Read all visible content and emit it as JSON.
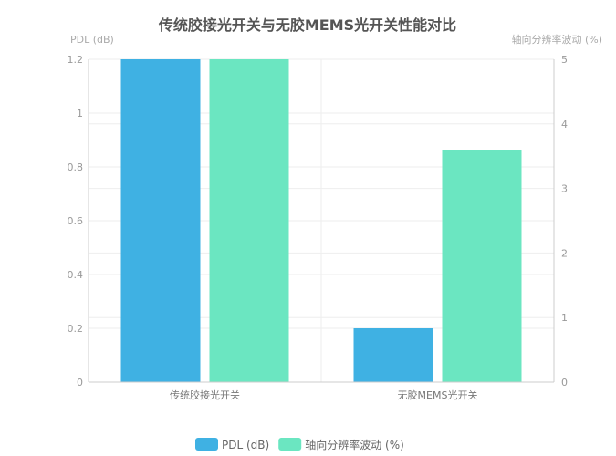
{
  "chart_data": {
    "type": "bar",
    "title": "传统胶接光开关与无胶MEMS光开关性能对比",
    "categories": [
      "传统胶接光开关",
      "无胶MEMS光开关"
    ],
    "y_left": {
      "label": "PDL (dB)",
      "range": [
        0,
        1.2
      ],
      "ticks": [
        "0",
        "0.2",
        "0.4",
        "0.6",
        "0.8",
        "1",
        "1.2"
      ]
    },
    "y_right": {
      "label": "轴向分辨率波动 (%)",
      "range": [
        0,
        5
      ],
      "ticks": [
        "0",
        "1",
        "2",
        "3",
        "4",
        "5"
      ]
    },
    "series": [
      {
        "name": "PDL (dB)",
        "axis": "left",
        "color": "#3fb1e3",
        "values": [
          1.2,
          0.2
        ]
      },
      {
        "name": "轴向分辨率波动 (%)",
        "axis": "right",
        "color": "#6be6c1",
        "values": [
          5,
          3.6
        ]
      }
    ],
    "notes_clipped": "first-category bars reach/exceed axis maximum",
    "grid": true,
    "legend": "bottom"
  }
}
